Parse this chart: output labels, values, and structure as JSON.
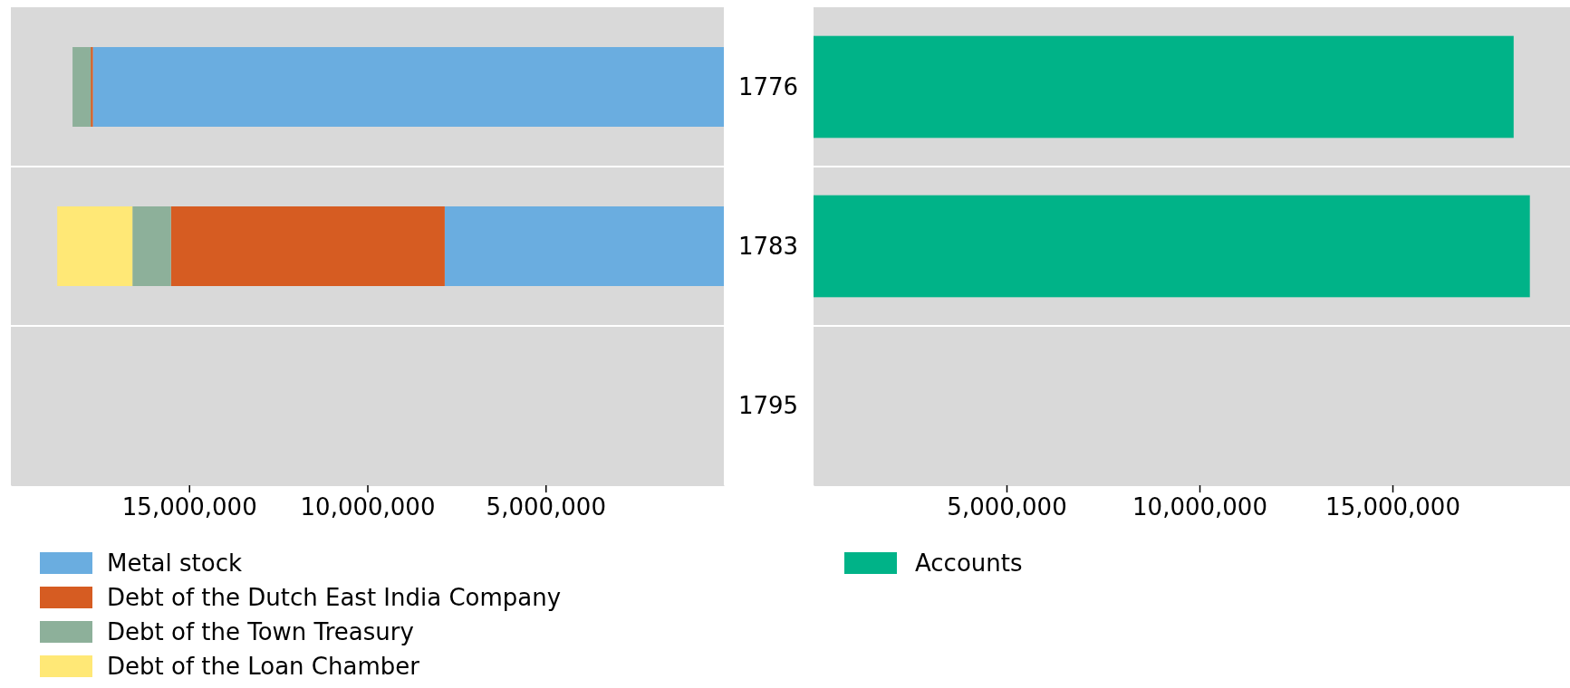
{
  "chart_data": [
    {
      "type": "bar",
      "orientation": "horizontal",
      "stacked": true,
      "categories": [
        "1776",
        "1783",
        "1795"
      ],
      "xlim": [
        20000000,
        0
      ],
      "xticks": [
        {
          "value": 15000000,
          "label": "15,000,000"
        },
        {
          "value": 10000000,
          "label": "10,000,000"
        },
        {
          "value": 5000000,
          "label": "5,000,000"
        }
      ],
      "tick_labels": "x",
      "legend": "bottom",
      "series": [
        {
          "name": "Metal stock",
          "color": "#6aade0",
          "values": [
            17700000,
            7830000,
            null
          ]
        },
        {
          "name": "Debt of the Dutch East India Company",
          "color": "#d65c22",
          "values": [
            60000,
            7680000,
            null
          ]
        },
        {
          "name": "Debt of the Town Treasury",
          "color": "#8db09a",
          "values": [
            510000,
            1080000,
            null
          ]
        },
        {
          "name": "Debt of the Loan Chamber",
          "color": "#ffe876",
          "values": [
            null,
            2110000,
            null
          ]
        }
      ]
    },
    {
      "type": "bar",
      "orientation": "horizontal",
      "categories": [
        "1776",
        "1783",
        "1795"
      ],
      "xlim": [
        0,
        19600000
      ],
      "xticks": [
        {
          "value": 5000000,
          "label": "5,000,000"
        },
        {
          "value": 10000000,
          "label": "10,000,000"
        },
        {
          "value": 15000000,
          "label": "15,000,000"
        }
      ],
      "legend": "bottom",
      "series": [
        {
          "name": "Accounts",
          "color": "#00b388",
          "values": [
            18140000,
            18560000,
            null
          ]
        }
      ]
    }
  ]
}
